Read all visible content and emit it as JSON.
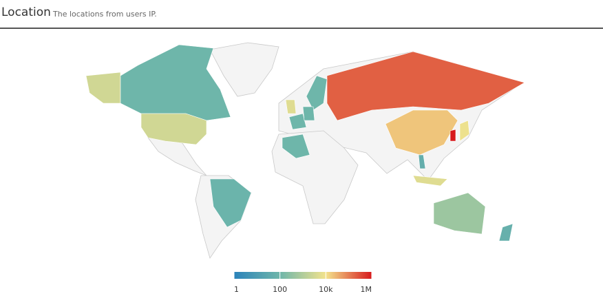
{
  "header": {
    "title": "Location",
    "subtitle": "The locations from users IP."
  },
  "map": {
    "values": [
      3000,
      100,
      3000,
      80,
      200000,
      100,
      5000,
      100,
      100,
      20000,
      1000000,
      8000,
      100,
      50,
      5000,
      500,
      60
    ]
  },
  "legend": {
    "log": true,
    "range": [
      1,
      1000000
    ],
    "ticks": [
      1,
      100,
      {
        "value": 10000,
        "label": "10k"
      },
      {
        "value": 1000000,
        "label": "1M"
      }
    ],
    "colors": [
      "#2b83ba",
      "#6eb6aa",
      "#f3e38c",
      "#d7191c"
    ]
  }
}
